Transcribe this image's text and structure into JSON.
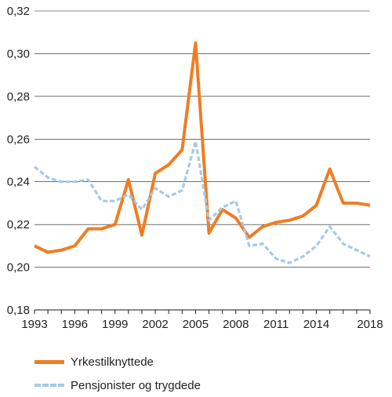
{
  "chart_data": {
    "type": "line",
    "x": [
      1993,
      1994,
      1995,
      1996,
      1997,
      1998,
      1999,
      2000,
      2001,
      2002,
      2003,
      2004,
      2005,
      2006,
      2007,
      2008,
      2009,
      2010,
      2011,
      2012,
      2013,
      2014,
      2015,
      2016,
      2017,
      2018
    ],
    "x_tick_labels": [
      "1993",
      "1996",
      "1999",
      "2002",
      "2005",
      "2008",
      "2011",
      "2014",
      "2018"
    ],
    "y_tick_labels": [
      "0,18",
      "0,20",
      "0,22",
      "0,24",
      "0,26",
      "0,28",
      "0,30",
      "0,32"
    ],
    "ylim": [
      0.18,
      0.32
    ],
    "grid": "horizontal",
    "legend_position": "bottom-left",
    "series": [
      {
        "name": "Yrkestilknyttede",
        "color": "#f07d22",
        "style": "solid",
        "values": [
          0.21,
          0.207,
          0.208,
          0.21,
          0.218,
          0.218,
          0.22,
          0.241,
          0.215,
          0.244,
          0.248,
          0.255,
          0.305,
          0.216,
          0.227,
          0.223,
          0.214,
          0.219,
          0.221,
          0.222,
          0.224,
          0.229,
          0.246,
          0.23,
          0.23,
          0.229
        ]
      },
      {
        "name": "Pensjonister og trygdede",
        "color": "#a6c9e8",
        "style": "dashed",
        "values": [
          0.247,
          0.242,
          0.24,
          0.24,
          0.241,
          0.231,
          0.231,
          0.234,
          0.227,
          0.237,
          0.233,
          0.236,
          0.259,
          0.222,
          0.228,
          0.231,
          0.21,
          0.211,
          0.204,
          0.202,
          0.205,
          0.21,
          0.219,
          0.211,
          0.208,
          0.205
        ]
      }
    ]
  }
}
